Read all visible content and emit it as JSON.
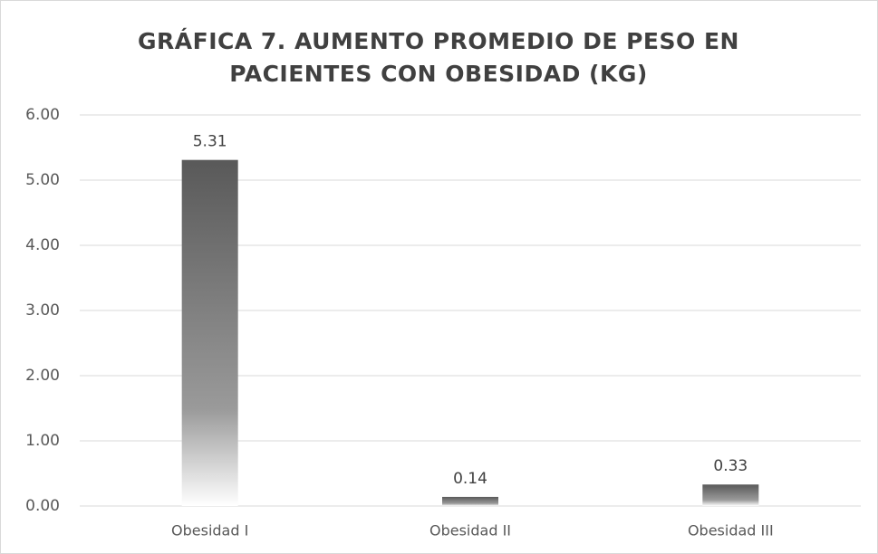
{
  "chart_data": {
    "type": "bar",
    "title": "GRÁFICA 7. AUMENTO PROMEDIO DE PESO EN PACIENTES CON OBESIDAD (KG)",
    "categories": [
      "Obesidad I",
      "Obesidad II",
      "Obesidad III"
    ],
    "values": [
      5.31,
      0.14,
      0.33
    ],
    "color": "#595959",
    "ylim": [
      0,
      6
    ],
    "yticks": [
      {
        "value": 0,
        "label": "0.00"
      },
      {
        "value": 1,
        "label": "1.00"
      },
      {
        "value": 2,
        "label": "2.00"
      },
      {
        "value": 3,
        "label": "3.00"
      },
      {
        "value": 4,
        "label": "4.00"
      },
      {
        "value": 5,
        "label": "5.00"
      },
      {
        "value": 6,
        "label": "6.00"
      }
    ],
    "grid": true
  }
}
